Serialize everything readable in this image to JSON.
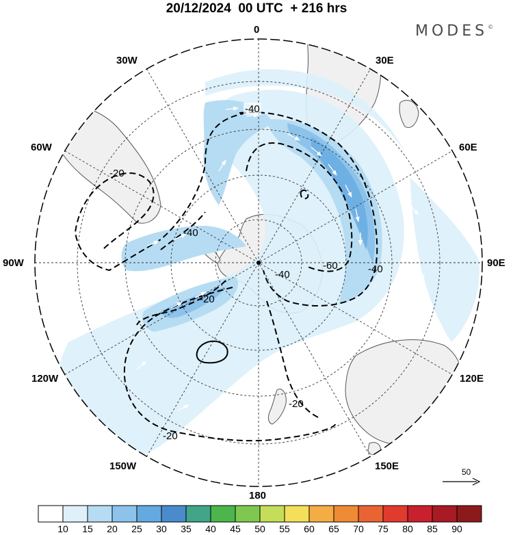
{
  "title": "20/12/2024  00 UTC  + 216 hrs",
  "brand": "MODES",
  "brand_mark": "©",
  "longitude_labels": {
    "lon_0": "0",
    "lon_30e": "30E",
    "lon_60e": "60E",
    "lon_90e": "90E",
    "lon_120e": "120E",
    "lon_150e": "150E",
    "lon_180": "180",
    "lon_150w": "150W",
    "lon_120w": "120W",
    "lon_90w": "90W",
    "lon_60w": "60W",
    "lon_30w": "30W"
  },
  "contour_labels": [
    "-40",
    "-20",
    "-40",
    "-20",
    "-40",
    "-60",
    "-40",
    "-20",
    "-20"
  ],
  "vector_scale": {
    "value": "50"
  },
  "colorbar": {
    "labels": [
      "10",
      "15",
      "20",
      "25",
      "30",
      "35",
      "40",
      "45",
      "50",
      "55",
      "60",
      "65",
      "70",
      "75",
      "80",
      "85",
      "90"
    ],
    "colors": [
      "#ffffff",
      "#dff0fb",
      "#b6dcf3",
      "#8dc3eb",
      "#64a9e0",
      "#4a8ccb",
      "#41a58a",
      "#4cb64c",
      "#7fc850",
      "#c5dd58",
      "#f4de5a",
      "#f4ad45",
      "#ef8a35",
      "#ea6433",
      "#e23a2f",
      "#c8202c",
      "#a81a24",
      "#8c1a1c"
    ]
  },
  "colors": {
    "land": "#f0f0f0",
    "coast": "#555555",
    "wind_light": "#dceffa",
    "wind_mid": "#b6dcf3",
    "wind_strong": "#8dc3eb",
    "wind_core": "#64a9e0"
  }
}
